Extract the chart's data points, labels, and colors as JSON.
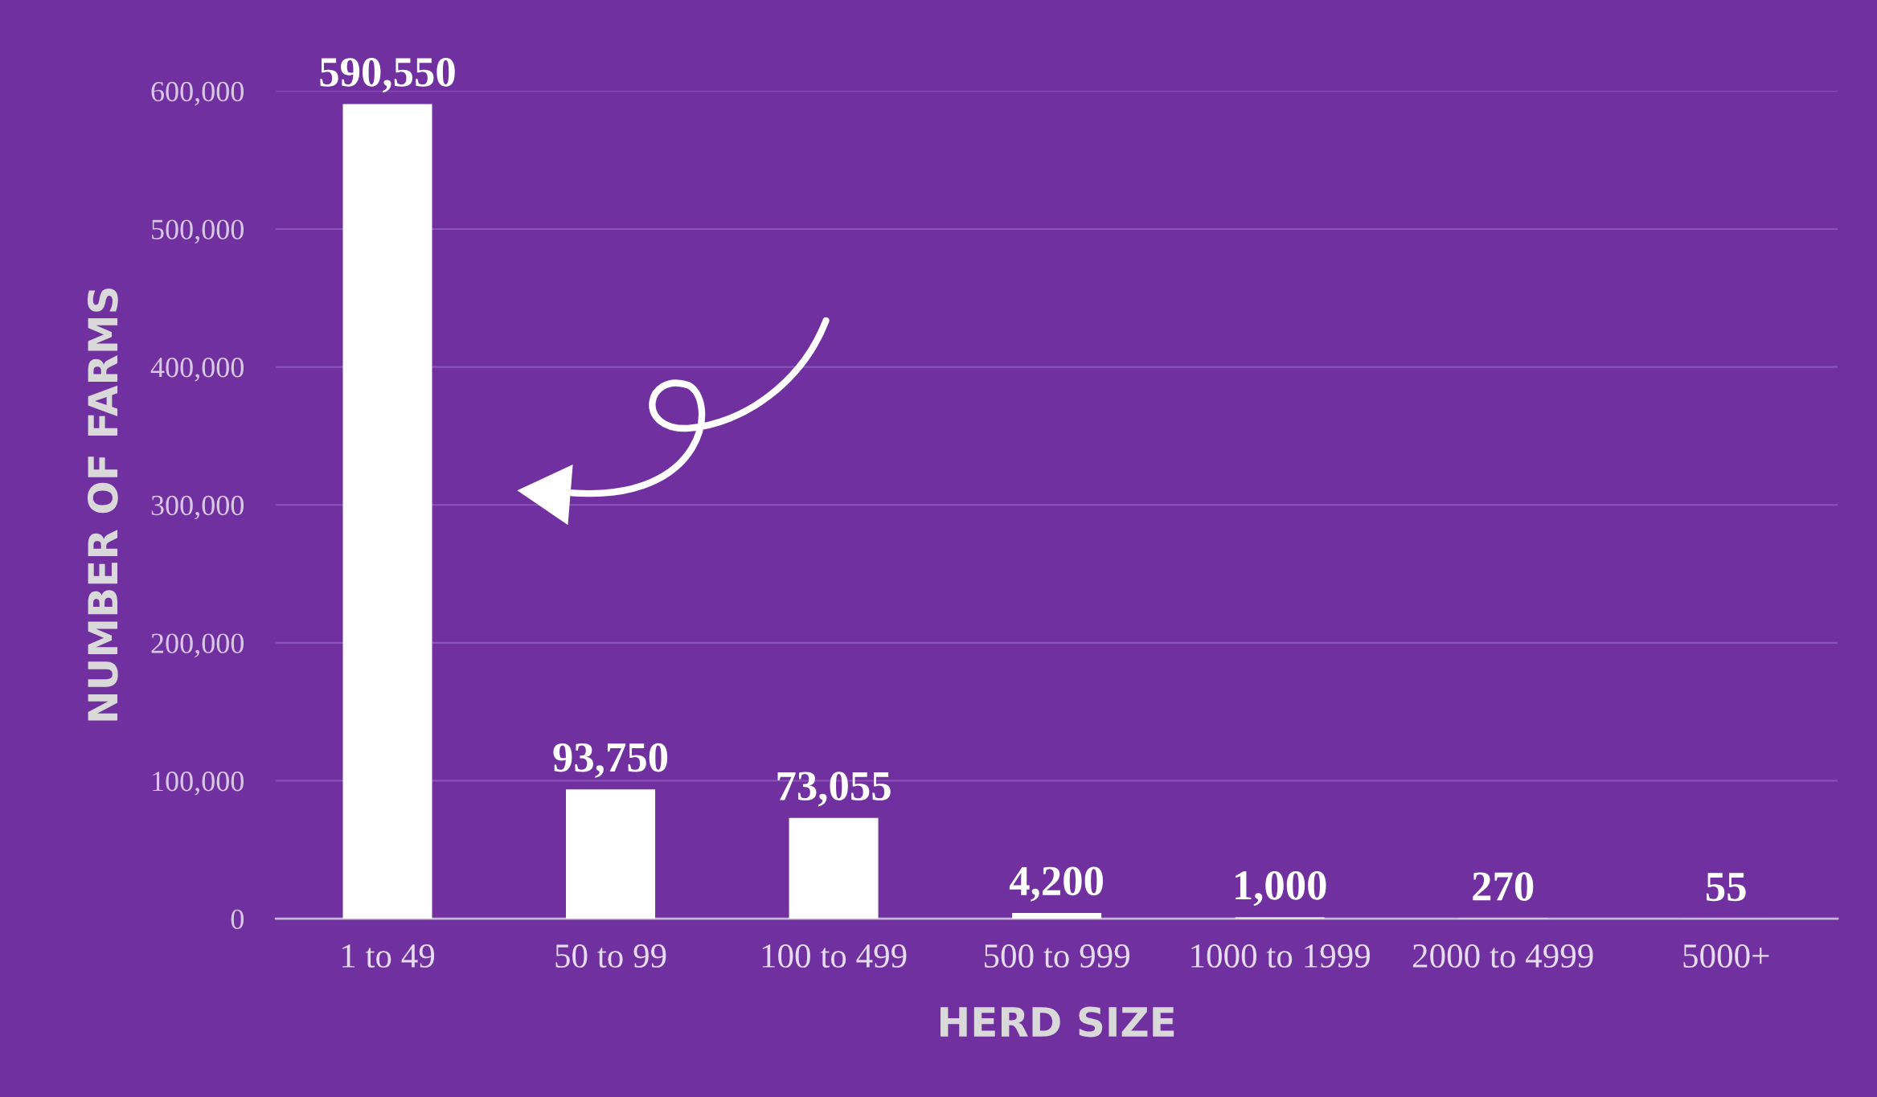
{
  "chart_data": {
    "type": "bar",
    "xlabel": "HERD SIZE",
    "ylabel": "NUMBER OF FARMS",
    "categories": [
      "1 to 49",
      "50 to 99",
      "100 to 499",
      "500 to 999",
      "1000 to 1999",
      "2000 to 4999",
      "5000+"
    ],
    "values": [
      590550,
      93750,
      73055,
      4200,
      1000,
      270,
      55
    ],
    "value_labels": [
      "590,550",
      "93,750",
      "73,055",
      "4,200",
      "1,000",
      "270",
      "55"
    ],
    "color": "#ffffff",
    "ylim": [
      0,
      600000
    ],
    "yticks": [
      {
        "value": 0,
        "label": "0"
      },
      {
        "value": 100000,
        "label": "100,000"
      },
      {
        "value": 200000,
        "label": "200,000"
      },
      {
        "value": 300000,
        "label": "300,000"
      },
      {
        "value": 400000,
        "label": "400,000"
      },
      {
        "value": 500000,
        "label": "500,000"
      },
      {
        "value": 600000,
        "label": "600,000"
      }
    ],
    "grid": "y",
    "legend": false
  }
}
